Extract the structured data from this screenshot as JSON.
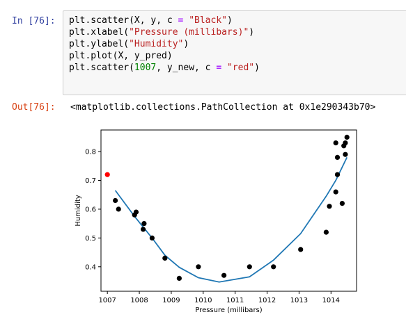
{
  "cell": {
    "in_prompt": "In [76]:",
    "out_prompt": "Out[76]:",
    "code": [
      [
        {
          "t": "plt.scatter(X, y, c "
        },
        {
          "t": "=",
          "c": "op"
        },
        {
          "t": " "
        },
        {
          "t": "\"Black\"",
          "c": "str"
        },
        {
          "t": ")"
        }
      ],
      [
        {
          "t": "plt.xlabel("
        },
        {
          "t": "\"Pressure (millibars)\"",
          "c": "str"
        },
        {
          "t": ")"
        }
      ],
      [
        {
          "t": "plt.ylabel("
        },
        {
          "t": "\"Humidity\"",
          "c": "str"
        },
        {
          "t": ")"
        }
      ],
      [
        {
          "t": "plt.plot(X, y_pred)"
        }
      ],
      [
        {
          "t": "plt.scatter("
        },
        {
          "t": "1007",
          "c": "num"
        },
        {
          "t": ", y_new, c "
        },
        {
          "t": "=",
          "c": "op"
        },
        {
          "t": " "
        },
        {
          "t": "\"red\"",
          "c": "str"
        },
        {
          "t": ")"
        }
      ]
    ],
    "output_text": "<matplotlib.collections.PathCollection at 0x1e290343b70>"
  },
  "chart_data": {
    "type": "scatter",
    "xlabel": "Pressure (millibars)",
    "ylabel": "Humidity",
    "xlim": [
      1006.8,
      1014.8
    ],
    "ylim": [
      0.315,
      0.875
    ],
    "xticks": [
      1007,
      1008,
      1009,
      1010,
      1011,
      1012,
      1013,
      1014
    ],
    "yticks": [
      0.4,
      0.5,
      0.6,
      0.7,
      0.8
    ],
    "grid": false,
    "series": [
      {
        "kind": "scatter",
        "color": "#000000",
        "points": [
          [
            1007.25,
            0.63
          ],
          [
            1007.35,
            0.6
          ],
          [
            1007.85,
            0.58
          ],
          [
            1007.9,
            0.59
          ],
          [
            1008.15,
            0.55
          ],
          [
            1008.12,
            0.53
          ],
          [
            1008.4,
            0.5
          ],
          [
            1008.8,
            0.43
          ],
          [
            1009.25,
            0.36
          ],
          [
            1009.85,
            0.4
          ],
          [
            1010.65,
            0.37
          ],
          [
            1011.45,
            0.4
          ],
          [
            1012.2,
            0.4
          ],
          [
            1013.05,
            0.46
          ],
          [
            1013.85,
            0.52
          ],
          [
            1013.95,
            0.61
          ],
          [
            1014.15,
            0.83
          ],
          [
            1014.2,
            0.78
          ],
          [
            1014.2,
            0.72
          ],
          [
            1014.15,
            0.66
          ],
          [
            1014.35,
            0.62
          ],
          [
            1014.4,
            0.82
          ],
          [
            1014.45,
            0.83
          ],
          [
            1014.5,
            0.85
          ],
          [
            1014.45,
            0.79
          ]
        ]
      },
      {
        "kind": "line",
        "color": "#1f77b4",
        "points": [
          [
            1007.25,
            0.665
          ],
          [
            1007.85,
            0.575
          ],
          [
            1008.4,
            0.5
          ],
          [
            1008.8,
            0.44
          ],
          [
            1009.25,
            0.398
          ],
          [
            1009.85,
            0.362
          ],
          [
            1010.5,
            0.347
          ],
          [
            1011.45,
            0.365
          ],
          [
            1012.2,
            0.423
          ],
          [
            1013.05,
            0.515
          ],
          [
            1013.85,
            0.645
          ],
          [
            1014.15,
            0.7
          ],
          [
            1014.5,
            0.78
          ]
        ]
      },
      {
        "kind": "scatter",
        "color": "#ff0000",
        "points": [
          [
            1007,
            0.72
          ]
        ]
      }
    ]
  }
}
